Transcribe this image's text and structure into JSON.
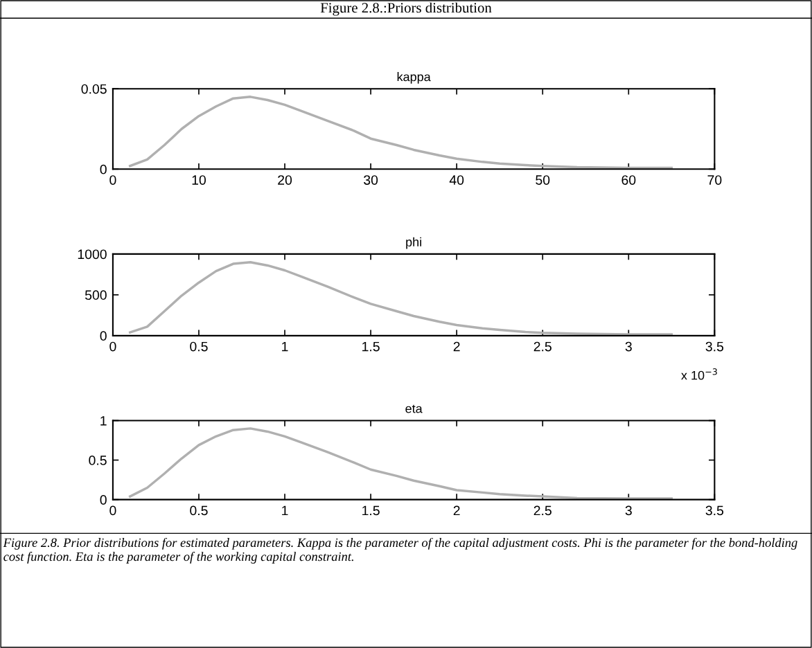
{
  "chart_data": [
    {
      "type": "other",
      "title": "Figure 2.8.:Priors distribution",
      "annotations": [
        "Figure 2.8. Prior distributions for estimated parameters. Kappa is the parameter of the capital adjustment costs. Phi is the parameter for the bond-holding cost function. Eta is the parameter of the working capital constraint."
      ]
    },
    {
      "type": "line",
      "title": "kappa",
      "x": [
        2,
        4,
        6,
        8,
        10,
        12,
        14,
        16,
        18,
        20,
        22,
        25,
        28,
        30,
        33,
        35,
        38,
        40,
        43,
        45,
        48,
        50,
        54,
        60,
        65
      ],
      "series": [
        {
          "color": "#b0b0b0",
          "values": [
            0.002,
            0.006,
            0.015,
            0.025,
            0.033,
            0.039,
            0.044,
            0.045,
            0.043,
            0.04,
            0.036,
            0.03,
            0.024,
            0.019,
            0.015,
            0.012,
            0.0085,
            0.0065,
            0.0045,
            0.0035,
            0.0025,
            0.002,
            0.0012,
            0.0008,
            0.0008
          ]
        }
      ],
      "xlim": [
        0,
        70
      ],
      "xticks": [
        0,
        10,
        20,
        30,
        40,
        50,
        60,
        70
      ],
      "ylim": [
        0,
        0.05
      ],
      "yticks": [
        0,
        0.05
      ],
      "grid": false,
      "legend": false,
      "marker": "none",
      "line_style": "solid"
    },
    {
      "type": "line",
      "title": "phi",
      "x": [
        0.1,
        0.2,
        0.3,
        0.4,
        0.5,
        0.6,
        0.7,
        0.8,
        0.9,
        1.0,
        1.1,
        1.25,
        1.4,
        1.5,
        1.65,
        1.75,
        1.9,
        2.0,
        2.15,
        2.25,
        2.4,
        2.5,
        2.7,
        3.0,
        3.25
      ],
      "series": [
        {
          "color": "#b0b0b0",
          "values": [
            40,
            110,
            300,
            490,
            650,
            790,
            880,
            900,
            860,
            800,
            720,
            600,
            470,
            390,
            300,
            240,
            170,
            130,
            90,
            70,
            45,
            35,
            25,
            15,
            15
          ]
        }
      ],
      "xlim": [
        0,
        3.5
      ],
      "xticks": [
        0,
        0.5,
        1,
        1.5,
        2,
        2.5,
        3,
        3.5
      ],
      "ylim": [
        0,
        1000
      ],
      "yticks": [
        0,
        500,
        1000
      ],
      "annotations": [
        "x 10$^{−3}$"
      ],
      "grid": false,
      "legend": false,
      "marker": "none",
      "line_style": "solid"
    },
    {
      "type": "line",
      "title": "eta",
      "x": [
        0.1,
        0.2,
        0.3,
        0.4,
        0.5,
        0.6,
        0.7,
        0.8,
        0.9,
        1.0,
        1.1,
        1.25,
        1.4,
        1.5,
        1.65,
        1.75,
        1.9,
        2.0,
        2.15,
        2.25,
        2.4,
        2.5,
        2.7,
        3.0,
        3.25
      ],
      "series": [
        {
          "color": "#b0b0b0",
          "values": [
            0.04,
            0.15,
            0.33,
            0.52,
            0.69,
            0.8,
            0.88,
            0.9,
            0.86,
            0.8,
            0.72,
            0.6,
            0.47,
            0.38,
            0.3,
            0.24,
            0.17,
            0.12,
            0.09,
            0.07,
            0.05,
            0.04,
            0.02,
            0.015,
            0.015
          ]
        }
      ],
      "xlim": [
        0,
        3.5
      ],
      "xticks": [
        0,
        0.5,
        1,
        1.5,
        2,
        2.5,
        3,
        3.5
      ],
      "ylim": [
        0,
        1
      ],
      "yticks": [
        0,
        0.5,
        1
      ],
      "grid": false,
      "legend": false,
      "marker": "none",
      "line_style": "solid"
    }
  ]
}
